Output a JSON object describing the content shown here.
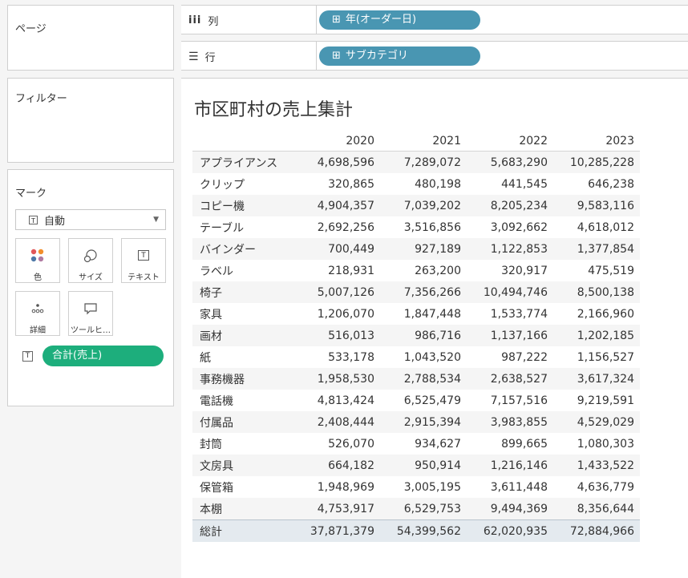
{
  "pages": {
    "title": "ページ"
  },
  "filters": {
    "title": "フィルター"
  },
  "marks": {
    "title": "マーク",
    "type": "自動",
    "buttons": {
      "color": "色",
      "size": "サイズ",
      "text": "テキスト",
      "detail": "詳細",
      "tooltip": "ツールヒ…"
    },
    "pill": "合計(売上)"
  },
  "shelves": {
    "columns": {
      "label": "列",
      "pill": "年(オーダー日)"
    },
    "rows": {
      "label": "行",
      "pill": "サブカテゴリ"
    }
  },
  "colors": {
    "column_pill": "#4996b2",
    "measure_pill": "#1dae7c"
  },
  "view": {
    "title": "市区町村の売上集計",
    "columns": [
      "2020",
      "2021",
      "2022",
      "2023"
    ],
    "rows": [
      {
        "name": "アプライアンス",
        "values": [
          "4,698,596",
          "7,289,072",
          "5,683,290",
          "10,285,228"
        ]
      },
      {
        "name": "クリップ",
        "values": [
          "320,865",
          "480,198",
          "441,545",
          "646,238"
        ]
      },
      {
        "name": "コピー機",
        "values": [
          "4,904,357",
          "7,039,202",
          "8,205,234",
          "9,583,116"
        ]
      },
      {
        "name": "テーブル",
        "values": [
          "2,692,256",
          "3,516,856",
          "3,092,662",
          "4,618,012"
        ]
      },
      {
        "name": "バインダー",
        "values": [
          "700,449",
          "927,189",
          "1,122,853",
          "1,377,854"
        ]
      },
      {
        "name": "ラベル",
        "values": [
          "218,931",
          "263,200",
          "320,917",
          "475,519"
        ]
      },
      {
        "name": "椅子",
        "values": [
          "5,007,126",
          "7,356,266",
          "10,494,746",
          "8,500,138"
        ]
      },
      {
        "name": "家具",
        "values": [
          "1,206,070",
          "1,847,448",
          "1,533,774",
          "2,166,960"
        ]
      },
      {
        "name": "画材",
        "values": [
          "516,013",
          "986,716",
          "1,137,166",
          "1,202,185"
        ]
      },
      {
        "name": "紙",
        "values": [
          "533,178",
          "1,043,520",
          "987,222",
          "1,156,527"
        ]
      },
      {
        "name": "事務機器",
        "values": [
          "1,958,530",
          "2,788,534",
          "2,638,527",
          "3,617,324"
        ]
      },
      {
        "name": "電話機",
        "values": [
          "4,813,424",
          "6,525,479",
          "7,157,516",
          "9,219,591"
        ]
      },
      {
        "name": "付属品",
        "values": [
          "2,408,444",
          "2,915,394",
          "3,983,855",
          "4,529,029"
        ]
      },
      {
        "name": "封筒",
        "values": [
          "526,070",
          "934,627",
          "899,665",
          "1,080,303"
        ]
      },
      {
        "name": "文房具",
        "values": [
          "664,182",
          "950,914",
          "1,216,146",
          "1,433,522"
        ]
      },
      {
        "name": "保管箱",
        "values": [
          "1,948,969",
          "3,005,195",
          "3,611,448",
          "4,636,779"
        ]
      },
      {
        "name": "本棚",
        "values": [
          "4,753,917",
          "6,529,753",
          "9,494,369",
          "8,356,644"
        ]
      }
    ],
    "total": {
      "name": "総計",
      "values": [
        "37,871,379",
        "54,399,562",
        "62,020,935",
        "72,884,966"
      ]
    }
  }
}
